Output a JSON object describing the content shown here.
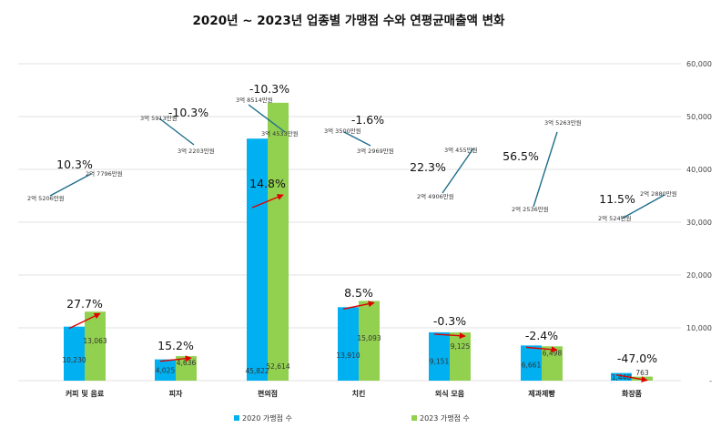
{
  "title": "2020년 ~ 2023년 업종별 가맹점 수와  연평균매출액 변화",
  "colors": {
    "s2020": "#00b0f0",
    "s2023": "#92d050",
    "arrow": "#e00000",
    "salesLine": "#1f6e8c",
    "grid": "#d9d9d9"
  },
  "chart_data": {
    "type": "bar",
    "categories": [
      "커피 및 음료",
      "피자",
      "편의점",
      "치킨",
      "외식 모음",
      "제과제빵",
      "화장품"
    ],
    "series": [
      {
        "name": "2020 가맹점 수",
        "values": [
          10230,
          4025,
          45822,
          13910,
          9151,
          6661,
          1440
        ],
        "labels": [
          "10,230",
          "4,025",
          "45,822",
          "13,910",
          "9,151",
          "6,661",
          "1,440"
        ]
      },
      {
        "name": "2023 가맹점 수",
        "values": [
          13063,
          4636,
          52614,
          15093,
          9125,
          6498,
          763
        ],
        "labels": [
          "13,063",
          "4,636",
          "52,614",
          "15,093",
          "9,125",
          "6,498",
          "763"
        ]
      }
    ],
    "store_change_pct": [
      "27.7%",
      "15.2%",
      "14.8%",
      "8.5%",
      "-0.3%",
      "-2.4%",
      "-47.0%"
    ],
    "yaxis": {
      "position": "right",
      "ylim": [
        0,
        60000
      ],
      "ticks": [
        0,
        10000,
        20000,
        30000,
        40000,
        50000,
        60000
      ],
      "tick_labels": [
        "-",
        "10,000",
        "20,000",
        "30,000",
        "40,000",
        "50,000",
        "60,000"
      ]
    },
    "avg_sales": {
      "from_labels": [
        "2억 5206만원",
        "3억 5913만원",
        "3억 8514만원",
        "3억 3500만원",
        "2억 4906만원",
        "2억 2536만원",
        "2억 524만원"
      ],
      "to_labels": [
        "2억 7796만원",
        "3억 2203만원",
        "3억 4533만원",
        "3억 2969만원",
        "3억 455만원",
        "3억 5263만원",
        "2억 2880만원"
      ],
      "change_pct": [
        "10.3%",
        "-10.3%",
        "-10.3%",
        "-1.6%",
        "22.3%",
        "56.5%",
        "11.5%"
      ]
    },
    "legend": [
      "2020 가맹점 수",
      "2023 가맹점 수"
    ],
    "legend_position": "bottom",
    "grid": true
  }
}
